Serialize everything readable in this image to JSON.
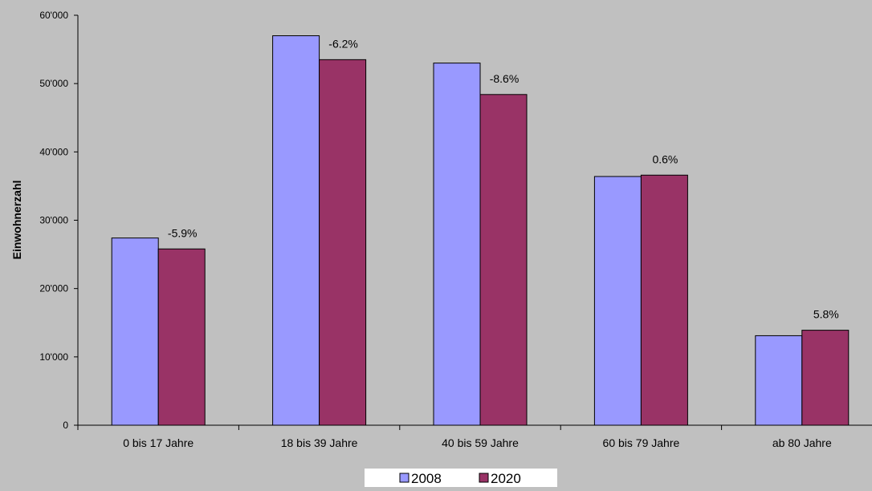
{
  "chart_data": {
    "type": "bar",
    "ylabel": "Einwohnerzahl",
    "xlabel": "",
    "ylim": [
      0,
      60000
    ],
    "ytick_values": [
      0,
      10000,
      20000,
      30000,
      40000,
      50000,
      60000
    ],
    "ytick_labels": [
      "0",
      "10'000",
      "20'000",
      "30'000",
      "40'000",
      "50'000",
      "60'000"
    ],
    "categories": [
      "0 bis 17 Jahre",
      "18 bis 39 Jahre",
      "40 bis 59 Jahre",
      "60 bis 79 Jahre",
      "ab 80 Jahre"
    ],
    "series": [
      {
        "name": "2008",
        "values": [
          27400,
          57000,
          53000,
          36400,
          13100
        ],
        "color": "#9999ff"
      },
      {
        "name": "2020",
        "values": [
          25800,
          53500,
          48400,
          36600,
          13900
        ],
        "color": "#993366"
      }
    ],
    "data_labels": [
      "-5.9%",
      "-6.2%",
      "-8.6%",
      "0.6%",
      "5.8%"
    ],
    "legend_position": "bottom",
    "grid": false,
    "background": "#c0c0c0"
  }
}
